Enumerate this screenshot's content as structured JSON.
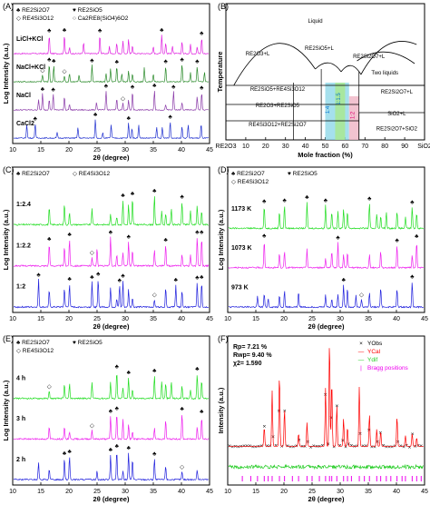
{
  "chart_data": [
    {
      "id": "A",
      "type": "line",
      "panel_label": "(A)",
      "xlabel": "2θ (degree)",
      "ylabel": "Log Intensity (a.u.)",
      "xlim": [
        10,
        45
      ],
      "xticks": [
        10,
        15,
        20,
        25,
        30,
        35,
        40,
        45
      ],
      "legend": [
        "♣ RE2Si2O7",
        "♥ RE2SiO5",
        "◇ RE4Si3O12",
        "○ Ca2RE8(SiO4)6O2"
      ],
      "series": [
        {
          "name": "LiCl+KCl",
          "color": "#e020e0",
          "peaks": [
            16.5,
            19.2,
            20.1,
            22.6,
            25.5,
            27.2,
            28.5,
            29.6,
            30.6,
            31.3,
            35.0,
            36.5,
            37.2,
            38.4,
            40.1,
            41.6,
            42.8,
            43.6
          ]
        },
        {
          "name": "NaCl+KCl",
          "color": "#2a8a2a",
          "peaks": [
            15.3,
            16.5,
            17.3,
            19.2,
            20.1,
            21.8,
            24.1,
            26.6,
            27.4,
            28.5,
            29.4,
            30.6,
            31.3,
            33.4,
            35.0,
            37.2,
            40.1,
            41.6,
            42.8,
            44.1
          ]
        },
        {
          "name": "NaCl",
          "color": "#8a3aa8",
          "peaks": [
            14.6,
            15.3,
            16.5,
            17.2,
            19.2,
            20.1,
            24.9,
            26.6,
            28.5,
            29.6,
            30.6,
            31.3,
            35.2,
            37.2,
            38.6,
            40.1,
            42.8,
            43.6
          ]
        },
        {
          "name": "CaCl2",
          "color": "#2232d0",
          "peaks": [
            12.5,
            14.0,
            17.9,
            21.6,
            24.7,
            26.0,
            27.5,
            30.6,
            31.2,
            32.4,
            35.6,
            36.6,
            38.0,
            40.1,
            41.2,
            43.5
          ]
        }
      ]
    },
    {
      "id": "B",
      "type": "diagram",
      "panel_label": "(B)",
      "xlabel": "Mole fraction (%)",
      "ylabel": "Temperature",
      "xlim": [
        0,
        100
      ],
      "xticks": [
        0,
        10,
        20,
        30,
        40,
        50,
        60,
        70,
        80,
        90,
        100
      ],
      "x_end_labels": [
        "RE2O3",
        "SiO2"
      ],
      "regions": [
        "Liquid",
        "RE2O3+L",
        "RE2SiO5+L",
        "RE2Si2O7+L",
        "Two liquids",
        "RE2SiO5+RE4Si3O12",
        "RE2O3+RE2SiO5",
        "RE4Si3O12+RE2Si2O7",
        "RE2Si2O7+L",
        "SiO2+L",
        "RE2Si2O7+SiO2"
      ],
      "ratio_labels": [
        "1:4",
        "1:1.5",
        "1:2"
      ]
    },
    {
      "id": "C",
      "type": "line",
      "panel_label": "(C)",
      "xlabel": "2θ (degree)",
      "ylabel": "Log Intensity (a.u.)",
      "xlim": [
        10,
        45
      ],
      "xticks": [
        10,
        15,
        20,
        25,
        30,
        35,
        40,
        45
      ],
      "legend": [
        "♣ RE2Si2O7",
        "◇ RE4Si3O12"
      ],
      "series": [
        {
          "name": "1:2.4",
          "color": "#22dd22",
          "peaks": [
            16.5,
            19.2,
            20.1,
            24.1,
            27.4,
            28.5,
            29.6,
            30.6,
            31.3,
            35.2,
            36.5,
            37.2,
            38.2,
            40.1,
            41.6,
            42.8,
            43.6
          ]
        },
        {
          "name": "1:2.2",
          "color": "#ee22ee",
          "peaks": [
            16.5,
            19.2,
            20.1,
            24.1,
            25.0,
            27.4,
            28.5,
            29.6,
            30.6,
            31.3,
            35.2,
            37.2,
            40.1,
            41.6,
            42.8,
            43.6
          ]
        },
        {
          "name": "1:2",
          "color": "#2222dd",
          "peaks": [
            14.6,
            16.5,
            19.2,
            20.1,
            24.1,
            25.2,
            27.4,
            28.5,
            29.0,
            29.6,
            30.6,
            31.3,
            35.2,
            37.2,
            39.0,
            40.1,
            42.8,
            43.6
          ]
        }
      ]
    },
    {
      "id": "D",
      "type": "line",
      "panel_label": "(D)",
      "xlabel": "2θ (degree)",
      "ylabel": "Log Intensity (a.u.)",
      "xlim": [
        10,
        45
      ],
      "xticks": [
        10,
        15,
        20,
        25,
        30,
        35,
        40,
        45
      ],
      "legend": [
        "♣ RE2Si2O7",
        "♥ RE2SiO5",
        "◇ RE4Si3O12"
      ],
      "series": [
        {
          "name": "1173 K",
          "color": "#22dd22",
          "peaks": [
            16.5,
            19.2,
            20.1,
            24.1,
            27.4,
            28.5,
            29.6,
            30.6,
            31.3,
            35.2,
            36.5,
            37.2,
            38.2,
            40.1,
            41.6,
            42.8,
            43.6
          ]
        },
        {
          "name": "1073 K",
          "color": "#ee22ee",
          "peaks": [
            16.5,
            19.2,
            20.1,
            24.1,
            27.4,
            28.5,
            29.6,
            30.6,
            31.3,
            35.2,
            37.2,
            40.1,
            42.8,
            43.6
          ]
        },
        {
          "name": "973 K",
          "color": "#2222dd",
          "peaks": [
            15.3,
            16.5,
            17.2,
            19.2,
            20.1,
            22.6,
            27.4,
            28.5,
            29.6,
            30.6,
            31.3,
            32.8,
            33.8,
            35.2,
            37.2,
            40.1,
            42.8
          ]
        }
      ]
    },
    {
      "id": "E",
      "type": "line",
      "panel_label": "(E)",
      "xlabel": "2θ (degree)",
      "ylabel": "Log Intensity (a.u.)",
      "xlim": [
        10,
        45
      ],
      "xticks": [
        10,
        15,
        20,
        25,
        30,
        35,
        40,
        45
      ],
      "legend": [
        "♣ RE2Si2O7",
        "♥ RE2SiO5",
        "◇ RE4Si3O12"
      ],
      "series": [
        {
          "name": "4 h",
          "color": "#22dd22",
          "peaks": [
            16.5,
            19.2,
            20.1,
            24.1,
            27.4,
            28.5,
            29.6,
            30.6,
            31.3,
            35.2,
            36.5,
            37.2,
            38.2,
            40.1,
            41.6,
            42.8,
            43.6
          ]
        },
        {
          "name": "3 h",
          "color": "#ee22ee",
          "peaks": [
            16.5,
            19.2,
            20.1,
            24.1,
            27.4,
            28.5,
            29.6,
            30.6,
            31.3,
            35.2,
            37.2,
            40.1,
            42.8,
            43.6
          ]
        },
        {
          "name": "2 h",
          "color": "#2222dd",
          "peaks": [
            14.6,
            16.5,
            19.2,
            20.1,
            25.0,
            27.4,
            28.5,
            29.6,
            30.6,
            31.3,
            35.2,
            37.2,
            40.1,
            42.8
          ]
        }
      ]
    },
    {
      "id": "F",
      "type": "scatter",
      "panel_label": "(F)",
      "xlabel": "2θ (degree)",
      "ylabel": "Intensity (a.u.)",
      "xlim": [
        10,
        45
      ],
      "xticks": [
        10,
        15,
        20,
        25,
        30,
        35,
        40,
        45
      ],
      "stats": [
        "Rp= 7.21 %",
        "Rwp= 9.40 %",
        "χ2= 1.590"
      ],
      "legend": [
        {
          "label": "YObs",
          "color": "#000000"
        },
        {
          "label": "YCal",
          "color": "#ff0000"
        },
        {
          "label": "Ydif",
          "color": "#22cc22"
        },
        {
          "label": "Bragg positions",
          "color": "#ee00ee"
        }
      ],
      "peaks": [
        {
          "x": 16.5,
          "h": 0.18
        },
        {
          "x": 17.9,
          "h": 0.52
        },
        {
          "x": 19.2,
          "h": 0.68
        },
        {
          "x": 20.1,
          "h": 0.35
        },
        {
          "x": 22.6,
          "h": 0.12
        },
        {
          "x": 24.1,
          "h": 0.22
        },
        {
          "x": 27.4,
          "h": 0.55
        },
        {
          "x": 28.1,
          "h": 1.0
        },
        {
          "x": 28.5,
          "h": 0.62
        },
        {
          "x": 29.4,
          "h": 0.38
        },
        {
          "x": 30.6,
          "h": 0.26
        },
        {
          "x": 31.3,
          "h": 0.18
        },
        {
          "x": 33.4,
          "h": 0.56
        },
        {
          "x": 35.2,
          "h": 0.3
        },
        {
          "x": 36.5,
          "h": 0.16
        },
        {
          "x": 37.2,
          "h": 0.14
        },
        {
          "x": 40.1,
          "h": 0.28
        },
        {
          "x": 41.6,
          "h": 0.1
        },
        {
          "x": 42.8,
          "h": 0.12
        },
        {
          "x": 43.6,
          "h": 0.08
        }
      ],
      "bragg": [
        12.6,
        14.1,
        15.3,
        16.5,
        17.2,
        17.9,
        19.2,
        20.1,
        21.5,
        22.6,
        24.1,
        25.0,
        26.3,
        27.4,
        28.1,
        28.5,
        29.4,
        30.6,
        31.3,
        32.0,
        33.4,
        34.3,
        35.2,
        36.5,
        37.2,
        38.2,
        39.0,
        40.1,
        41.0,
        41.6,
        42.8,
        43.6,
        44.4
      ]
    }
  ]
}
